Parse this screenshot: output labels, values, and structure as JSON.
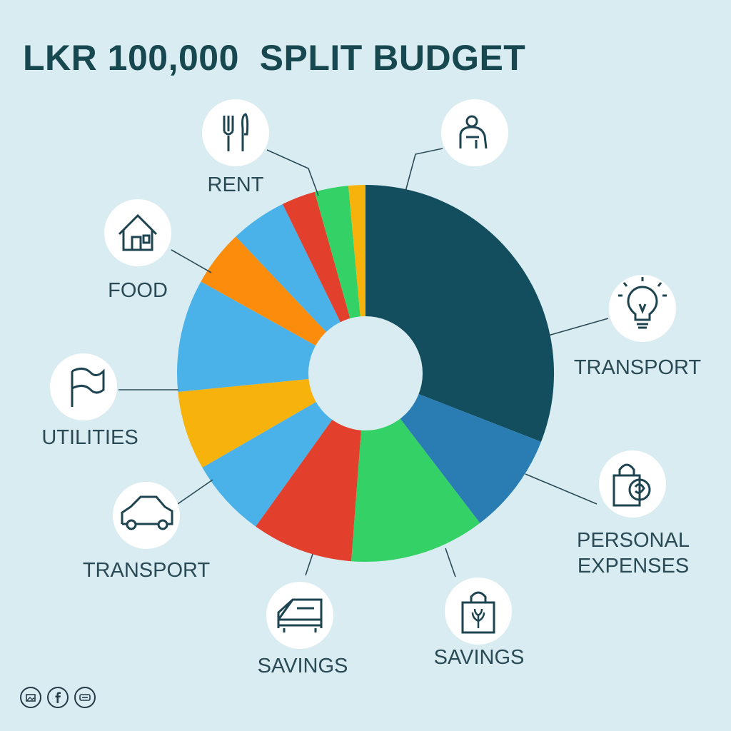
{
  "chart_data": {
    "type": "pie",
    "title": "LKR 100,000  SPLIT BUDGET",
    "donut": true,
    "unit_note": "share of LKR 100,000, estimated from slice angles",
    "slices": [
      {
        "value": 32,
        "color": "#134e5e"
      },
      {
        "value": 9,
        "color": "#2a7db3"
      },
      {
        "value": 12,
        "color": "#34d266"
      },
      {
        "value": 9,
        "color": "#e2402c"
      },
      {
        "value": 7,
        "color": "#4ab2e8"
      },
      {
        "value": 7,
        "color": "#f7b20c"
      },
      {
        "value": 10,
        "color": "#4ab2e8"
      },
      {
        "value": 5,
        "color": "#fb8c0c"
      },
      {
        "value": 5,
        "color": "#4ab2e8"
      },
      {
        "value": 3,
        "color": "#e2402c"
      },
      {
        "value": 3,
        "color": "#34d266"
      },
      {
        "value": 1.5,
        "color": "#f7b20c"
      }
    ],
    "labels": [
      {
        "lines": [
          "RENT"
        ],
        "icon": "fork-knife-icon"
      },
      {
        "lines": [],
        "icon": "person-icon"
      },
      {
        "lines": [
          "FOOD"
        ],
        "icon": "house-icon"
      },
      {
        "lines": [
          "TRANSPORT"
        ],
        "icon": "lightbulb-icon"
      },
      {
        "lines": [
          "UTILITIES"
        ],
        "icon": "flag-icon"
      },
      {
        "lines": [
          "PERSONAL",
          "EXPENSES"
        ],
        "icon": "shopping-bag-icon"
      },
      {
        "lines": [
          "TRANSPORT"
        ],
        "icon": "car-icon"
      },
      {
        "lines": [
          "SAVINGS"
        ],
        "icon": "bed-icon"
      },
      {
        "lines": [
          "SAVINGS"
        ],
        "icon": "gift-bag-icon"
      }
    ]
  },
  "footer": {
    "icons": [
      "image-icon",
      "facebook-icon",
      "minus-icon"
    ]
  }
}
